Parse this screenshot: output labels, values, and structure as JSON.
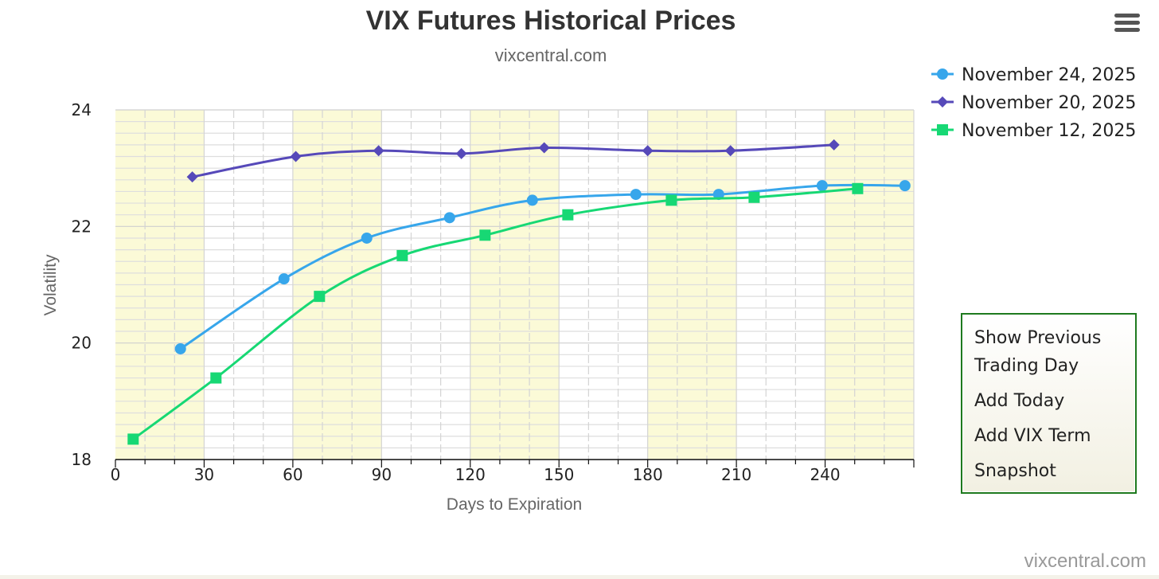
{
  "chart_data": {
    "type": "line",
    "title": "VIX Futures Historical Prices",
    "subtitle": "vixcentral.com",
    "xlabel": "Days to Expiration",
    "ylabel": "Volatility",
    "xlim": [
      0,
      270
    ],
    "ylim": [
      18,
      24
    ],
    "x_ticks": [
      0,
      30,
      60,
      90,
      120,
      150,
      180,
      210,
      240
    ],
    "y_ticks": [
      18,
      20,
      22,
      24
    ],
    "grid": true,
    "legend_position": "top-right",
    "shaded_bands": [
      [
        0,
        30
      ],
      [
        60,
        90
      ],
      [
        120,
        150
      ],
      [
        180,
        210
      ],
      [
        240,
        270
      ]
    ],
    "band_color": "#fbfad7",
    "series": [
      {
        "name": "November 24, 2025",
        "color": "#37a6eb",
        "marker": "circle",
        "points": [
          [
            22,
            19.9
          ],
          [
            57,
            21.1
          ],
          [
            85,
            21.8
          ],
          [
            113,
            22.15
          ],
          [
            141,
            22.45
          ],
          [
            176,
            22.55
          ],
          [
            204,
            22.55
          ],
          [
            239,
            22.7
          ],
          [
            267,
            22.7
          ]
        ]
      },
      {
        "name": "November 20, 2025",
        "color": "#5649b9",
        "marker": "diamond",
        "points": [
          [
            26,
            22.85
          ],
          [
            61,
            23.2
          ],
          [
            89,
            23.3
          ],
          [
            117,
            23.25
          ],
          [
            145,
            23.35
          ],
          [
            180,
            23.3
          ],
          [
            208,
            23.3
          ],
          [
            243,
            23.4
          ]
        ]
      },
      {
        "name": "November 12, 2025",
        "color": "#17d874",
        "marker": "square",
        "points": [
          [
            6,
            18.35
          ],
          [
            34,
            19.4
          ],
          [
            69,
            20.8
          ],
          [
            97,
            21.5
          ],
          [
            125,
            21.85
          ],
          [
            153,
            22.2
          ],
          [
            188,
            22.45
          ],
          [
            216,
            22.5
          ],
          [
            251,
            22.65
          ]
        ]
      }
    ]
  },
  "menu": {
    "icon": "hamburger-menu-icon"
  },
  "panel": {
    "buttons": [
      "Show Previous Trading Day",
      "Add Today",
      "Add VIX Term",
      "Snapshot"
    ]
  },
  "credit": "vixcentral.com"
}
